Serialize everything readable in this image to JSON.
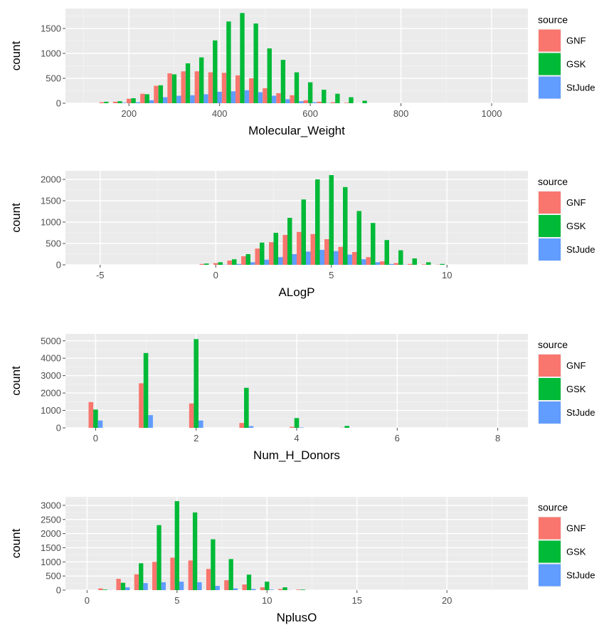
{
  "chart_data": [
    {
      "type": "bar",
      "xlabel": "Molecular_Weight",
      "ylabel": "count",
      "xlim": [
        60,
        1080
      ],
      "ylim": [
        0,
        1900
      ],
      "xticks": [
        200,
        400,
        600,
        800,
        1000
      ],
      "yticks": [
        0,
        500,
        1000,
        1500
      ],
      "bin_width": 30,
      "grid": true,
      "legend": {
        "title": "source",
        "placement": "right",
        "entries": [
          "GNF",
          "GSK",
          "StJude"
        ]
      },
      "x": [
        150,
        180,
        210,
        240,
        270,
        300,
        330,
        360,
        390,
        420,
        450,
        480,
        510,
        540,
        570,
        600,
        630,
        660,
        690,
        720
      ],
      "series": [
        {
          "name": "GNF",
          "color": "#F8766D",
          "values": [
            20,
            30,
            90,
            190,
            350,
            600,
            640,
            640,
            620,
            610,
            560,
            500,
            300,
            200,
            160,
            60,
            30,
            20,
            10,
            0
          ]
        },
        {
          "name": "GSK",
          "color": "#00BA38",
          "values": [
            30,
            40,
            100,
            180,
            360,
            580,
            800,
            920,
            1260,
            1640,
            1810,
            1600,
            1100,
            870,
            620,
            420,
            270,
            190,
            120,
            50
          ]
        },
        {
          "name": "StJude",
          "color": "#619CFF",
          "values": [
            0,
            10,
            20,
            60,
            120,
            150,
            160,
            180,
            230,
            240,
            260,
            220,
            150,
            80,
            40,
            20,
            5,
            0,
            0,
            0
          ]
        }
      ]
    },
    {
      "type": "bar",
      "xlabel": "ALogP",
      "ylabel": "count",
      "xlim": [
        -6.5,
        13.5
      ],
      "ylim": [
        0,
        2200
      ],
      "xticks": [
        -5,
        0,
        5,
        10
      ],
      "yticks": [
        0,
        500,
        1000,
        1500,
        2000
      ],
      "bin_width": 0.6,
      "grid": true,
      "legend": {
        "title": "source",
        "placement": "right",
        "entries": [
          "GNF",
          "GSK",
          "StJude"
        ]
      },
      "x": [
        -0.4,
        0.2,
        0.8,
        1.4,
        2.0,
        2.6,
        3.2,
        3.8,
        4.4,
        5.0,
        5.6,
        6.2,
        6.8,
        7.4,
        8.0,
        8.6,
        9.2,
        9.8
      ],
      "series": [
        {
          "name": "GNF",
          "color": "#F8766D",
          "values": [
            20,
            40,
            100,
            200,
            380,
            530,
            700,
            770,
            720,
            600,
            420,
            300,
            180,
            80,
            40,
            20,
            10,
            5
          ]
        },
        {
          "name": "GSK",
          "color": "#00BA38",
          "values": [
            30,
            60,
            130,
            250,
            520,
            750,
            1100,
            1530,
            2000,
            2100,
            1820,
            1260,
            980,
            580,
            340,
            150,
            60,
            20
          ]
        },
        {
          "name": "StJude",
          "color": "#619CFF",
          "values": [
            0,
            5,
            20,
            60,
            120,
            180,
            250,
            310,
            350,
            320,
            240,
            130,
            60,
            20,
            5,
            0,
            0,
            0
          ]
        }
      ]
    },
    {
      "type": "bar",
      "xlabel": "Num_H_Donors",
      "ylabel": "count",
      "xlim": [
        -0.6,
        8.6
      ],
      "ylim": [
        0,
        5400
      ],
      "xticks": [
        0,
        2,
        4,
        6,
        8
      ],
      "yticks": [
        0,
        1000,
        2000,
        3000,
        4000,
        5000
      ],
      "bin_width": 0.28,
      "grid": true,
      "legend": {
        "title": "source",
        "placement": "right",
        "entries": [
          "GNF",
          "GSK",
          "StJude"
        ]
      },
      "x": [
        0,
        1,
        2,
        3,
        4,
        5
      ],
      "series": [
        {
          "name": "GNF",
          "color": "#F8766D",
          "values": [
            1480,
            2560,
            1400,
            280,
            60,
            10
          ]
        },
        {
          "name": "GSK",
          "color": "#00BA38",
          "values": [
            1050,
            4300,
            5100,
            2300,
            560,
            110
          ]
        },
        {
          "name": "StJude",
          "color": "#619CFF",
          "values": [
            420,
            730,
            420,
            100,
            20,
            0
          ]
        }
      ]
    },
    {
      "type": "bar",
      "xlabel": "NplusO",
      "ylabel": "count",
      "xlim": [
        -1.2,
        24.5
      ],
      "ylim": [
        0,
        3300
      ],
      "xticks": [
        0,
        5,
        10,
        15,
        20
      ],
      "yticks": [
        0,
        500,
        1000,
        1500,
        2000,
        2500,
        3000
      ],
      "bin_width": 0.75,
      "grid": true,
      "legend": {
        "title": "source",
        "placement": "right",
        "entries": [
          "GNF",
          "GSK",
          "StJude"
        ]
      },
      "x": [
        1,
        2,
        3,
        4,
        5,
        6,
        7,
        8,
        9,
        10,
        11,
        12
      ],
      "series": [
        {
          "name": "GNF",
          "color": "#F8766D",
          "values": [
            60,
            400,
            560,
            1000,
            1150,
            1050,
            750,
            350,
            200,
            100,
            40,
            20
          ]
        },
        {
          "name": "GSK",
          "color": "#00BA38",
          "values": [
            20,
            260,
            950,
            2300,
            3150,
            2750,
            1800,
            1100,
            550,
            300,
            100,
            20
          ]
        },
        {
          "name": "StJude",
          "color": "#619CFF",
          "values": [
            5,
            100,
            250,
            280,
            300,
            280,
            150,
            60,
            40,
            20,
            5,
            0
          ]
        }
      ]
    }
  ]
}
